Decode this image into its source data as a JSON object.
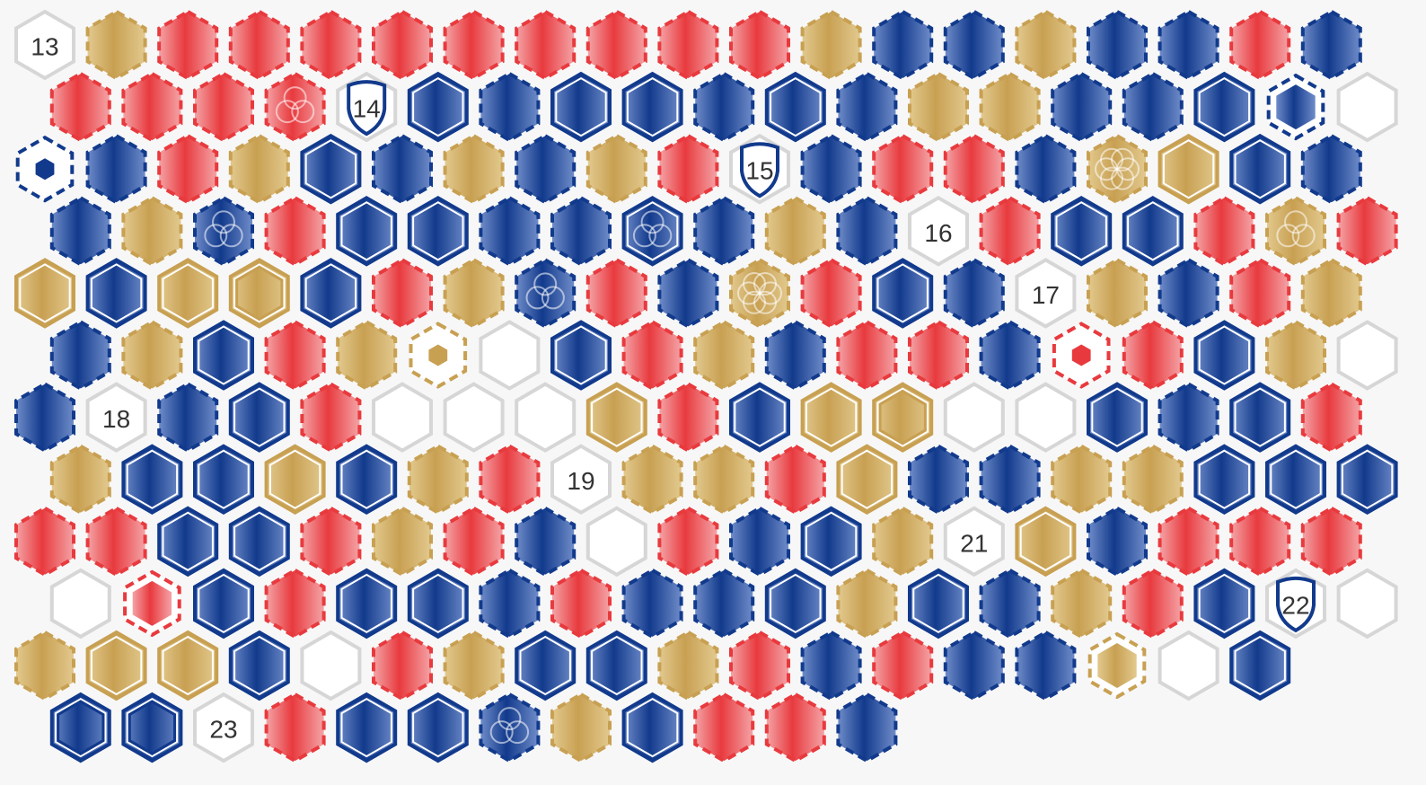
{
  "colors": {
    "red": "#e83a3e",
    "red_light": "#f4a3a6",
    "blue": "#123a8c",
    "blue_light": "#6f8cc9",
    "gold": "#c8a052",
    "gold_light": "#e2c98e",
    "empty_stroke": "#d6d6d6",
    "empty_fill": "#ffffff",
    "background": "#f7f7f7"
  },
  "rows": [
    [
      "13",
      "g",
      "r",
      "r",
      "r",
      "r",
      "r",
      "r",
      "r",
      "r",
      "r",
      "g",
      "b",
      "b",
      "g",
      "b",
      "b",
      "r",
      "b"
    ],
    [
      "r",
      "r",
      "r",
      "r:trinity",
      "14:shield",
      "B",
      "b",
      "B",
      "B",
      "b",
      "B",
      "b",
      "g",
      "g",
      "b",
      "b",
      "B",
      "b:inner",
      "e"
    ],
    [
      "e:dot-b",
      "b",
      "r",
      "g",
      "B",
      "b",
      "g",
      "b",
      "g",
      "r",
      "15:shield",
      "b",
      "r",
      "r",
      "b",
      "g:flower",
      "G",
      "B",
      "b"
    ],
    [
      "b",
      "g",
      "b:trinity",
      "r",
      "B",
      "B",
      "b",
      "b",
      "B:trinity",
      "b",
      "g",
      "b",
      "16",
      "r",
      "B",
      "B",
      "r",
      "g:trinity",
      "r"
    ],
    [
      "G",
      "B",
      "G",
      "G:double",
      "B",
      "r",
      "g",
      "b:trinity",
      "r",
      "b",
      "g:flower",
      "r",
      "B",
      "b",
      "17",
      "g",
      "b",
      "r",
      "g"
    ],
    [
      "b",
      "g",
      "B",
      "r",
      "g",
      "e:dot-g",
      "e",
      "B",
      "r",
      "g",
      "b",
      "r",
      "r",
      "b",
      "e:dot-r",
      "r",
      "B",
      "g",
      "e"
    ],
    [
      "b",
      "18",
      "b",
      "B",
      "r",
      "e",
      "e",
      "e",
      "G",
      "r",
      "B",
      "G",
      "G:double",
      "e",
      "e",
      "B",
      "b",
      "B",
      "r"
    ],
    [
      "g",
      "B",
      "B",
      "G",
      "B",
      "g",
      "r",
      "19",
      "g",
      "g",
      "r",
      "G",
      "b",
      "b",
      "g",
      "g",
      "B",
      "B",
      "B"
    ],
    [
      "r",
      "r",
      "B",
      "B",
      "r",
      "g",
      "r",
      "b",
      "e",
      "r",
      "b",
      "B",
      "g",
      "21",
      "G",
      "b",
      "r",
      "r",
      "r"
    ],
    [
      "e",
      "r:inner",
      "B",
      "r",
      "B",
      "B",
      "b",
      "r",
      "b",
      "b",
      "B",
      "g",
      "B",
      "b",
      "g",
      "r",
      "B",
      "22:shield",
      "e"
    ],
    [
      "g",
      "G",
      "G",
      "B",
      "e",
      "r",
      "g",
      "B",
      "B",
      "g",
      "r",
      "b",
      "r",
      "b",
      "b",
      "g:inner",
      "e",
      "B",
      ""
    ],
    [
      "B:double",
      "B:double",
      "23",
      "r",
      "B",
      "B",
      "b:trinity",
      "g",
      "B",
      "r",
      "r",
      "b",
      "",
      "",
      "",
      "",
      "",
      "",
      ""
    ]
  ]
}
